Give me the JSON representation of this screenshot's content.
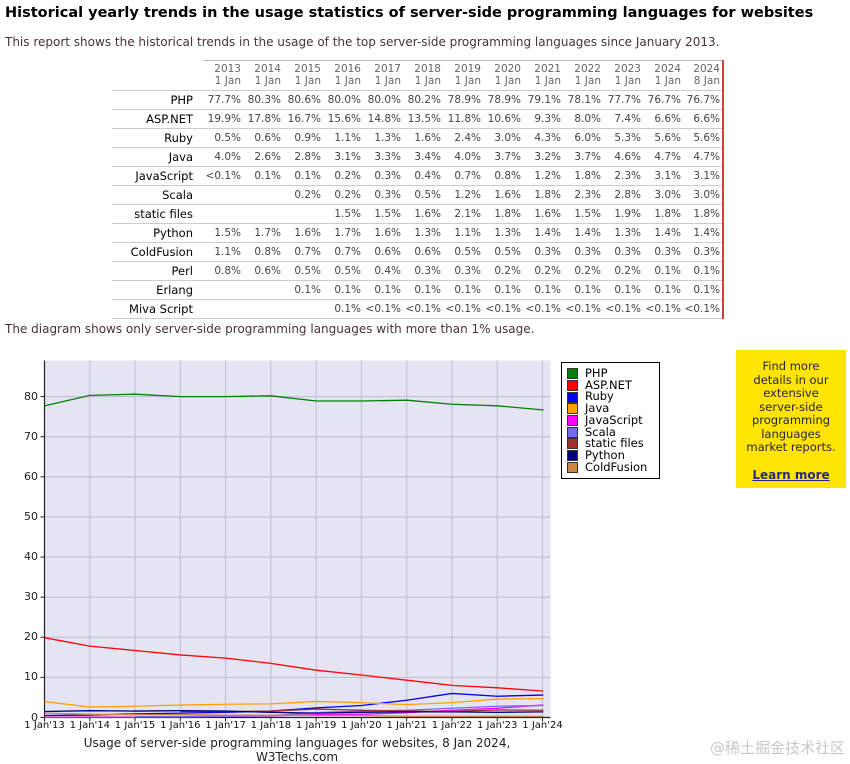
{
  "page": {
    "title": "Historical yearly trends in the usage statistics of server-side programming languages for websites",
    "subtitle": "This report shows the historical trends in the usage of the top server-side programming languages since January 2013.",
    "note": "The diagram shows only server-side programming languages with more than 1% usage.",
    "watermark": "@稀土掘金技术社区"
  },
  "table": {
    "col_headers": [
      {
        "year": "2013",
        "day": "1 Jan"
      },
      {
        "year": "2014",
        "day": "1 Jan"
      },
      {
        "year": "2015",
        "day": "1 Jan"
      },
      {
        "year": "2016",
        "day": "1 Jan"
      },
      {
        "year": "2017",
        "day": "1 Jan"
      },
      {
        "year": "2018",
        "day": "1 Jan"
      },
      {
        "year": "2019",
        "day": "1 Jan"
      },
      {
        "year": "2020",
        "day": "1 Jan"
      },
      {
        "year": "2021",
        "day": "1 Jan"
      },
      {
        "year": "2022",
        "day": "1 Jan"
      },
      {
        "year": "2023",
        "day": "1 Jan"
      },
      {
        "year": "2024",
        "day": "1 Jan"
      },
      {
        "year": "2024",
        "day": "8 Jan"
      }
    ],
    "rows": [
      {
        "label": "PHP",
        "values": [
          "77.7%",
          "80.3%",
          "80.6%",
          "80.0%",
          "80.0%",
          "80.2%",
          "78.9%",
          "78.9%",
          "79.1%",
          "78.1%",
          "77.7%",
          "76.7%",
          "76.7%"
        ]
      },
      {
        "label": "ASP.NET",
        "values": [
          "19.9%",
          "17.8%",
          "16.7%",
          "15.6%",
          "14.8%",
          "13.5%",
          "11.8%",
          "10.6%",
          "9.3%",
          "8.0%",
          "7.4%",
          "6.6%",
          "6.6%"
        ]
      },
      {
        "label": "Ruby",
        "values": [
          "0.5%",
          "0.6%",
          "0.9%",
          "1.1%",
          "1.3%",
          "1.6%",
          "2.4%",
          "3.0%",
          "4.3%",
          "6.0%",
          "5.3%",
          "5.6%",
          "5.6%"
        ]
      },
      {
        "label": "Java",
        "values": [
          "4.0%",
          "2.6%",
          "2.8%",
          "3.1%",
          "3.3%",
          "3.4%",
          "4.0%",
          "3.7%",
          "3.2%",
          "3.7%",
          "4.6%",
          "4.7%",
          "4.7%"
        ]
      },
      {
        "label": "JavaScript",
        "values": [
          "<0.1%",
          "0.1%",
          "0.1%",
          "0.2%",
          "0.3%",
          "0.4%",
          "0.7%",
          "0.8%",
          "1.2%",
          "1.8%",
          "2.3%",
          "3.1%",
          "3.1%"
        ]
      },
      {
        "label": "Scala",
        "values": [
          "",
          "",
          "0.2%",
          "0.2%",
          "0.3%",
          "0.5%",
          "1.2%",
          "1.6%",
          "1.8%",
          "2.3%",
          "2.8%",
          "3.0%",
          "3.0%"
        ]
      },
      {
        "label": "static files",
        "values": [
          "",
          "",
          "",
          "1.5%",
          "1.5%",
          "1.6%",
          "2.1%",
          "1.8%",
          "1.6%",
          "1.5%",
          "1.9%",
          "1.8%",
          "1.8%"
        ]
      },
      {
        "label": "Python",
        "values": [
          "1.5%",
          "1.7%",
          "1.6%",
          "1.7%",
          "1.6%",
          "1.3%",
          "1.1%",
          "1.3%",
          "1.4%",
          "1.4%",
          "1.3%",
          "1.4%",
          "1.4%"
        ]
      },
      {
        "label": "ColdFusion",
        "values": [
          "1.1%",
          "0.8%",
          "0.7%",
          "0.7%",
          "0.6%",
          "0.6%",
          "0.5%",
          "0.5%",
          "0.3%",
          "0.3%",
          "0.3%",
          "0.3%",
          "0.3%"
        ]
      },
      {
        "label": "Perl",
        "values": [
          "0.8%",
          "0.6%",
          "0.5%",
          "0.5%",
          "0.4%",
          "0.3%",
          "0.3%",
          "0.2%",
          "0.2%",
          "0.2%",
          "0.2%",
          "0.1%",
          "0.1%"
        ]
      },
      {
        "label": "Erlang",
        "values": [
          "",
          "",
          "0.1%",
          "0.1%",
          "0.1%",
          "0.1%",
          "0.1%",
          "0.1%",
          "0.1%",
          "0.1%",
          "0.1%",
          "0.1%",
          "0.1%"
        ]
      },
      {
        "label": "Miva Script",
        "values": [
          "",
          "",
          "",
          "0.1%",
          "<0.1%",
          "<0.1%",
          "<0.1%",
          "<0.1%",
          "<0.1%",
          "<0.1%",
          "<0.1%",
          "<0.1%",
          "<0.1%"
        ]
      }
    ]
  },
  "chart": {
    "caption": "Usage of server-side programming languages for websites, 8 Jan 2024, W3Techs.com",
    "plot_bg": "#e4e4f2",
    "grid_color": "#bcbcd2",
    "y_ticks": [
      0,
      10,
      20,
      30,
      40,
      50,
      60,
      70,
      80
    ]
  },
  "chart_data": {
    "type": "line",
    "x_labels": [
      "1 Jan'13",
      "1 Jan'14",
      "1 Jan'15",
      "1 Jan'16",
      "1 Jan'17",
      "1 Jan'18",
      "1 Jan'19",
      "1 Jan'20",
      "1 Jan'21",
      "1 Jan'22",
      "1 Jan'23",
      "1 Jan'24"
    ],
    "x_points": [
      "2013-01-01",
      "2014-01-01",
      "2015-01-01",
      "2016-01-01",
      "2017-01-01",
      "2018-01-01",
      "2019-01-01",
      "2020-01-01",
      "2021-01-01",
      "2022-01-01",
      "2023-01-01",
      "2024-01-01",
      "2024-01-08"
    ],
    "ylim": [
      0,
      89
    ],
    "grid": true,
    "legend_position": "right",
    "title": "Usage of server-side programming languages for websites, 8 Jan 2024, W3Techs.com",
    "series": [
      {
        "name": "PHP",
        "color": "#008000",
        "values": [
          77.7,
          80.3,
          80.6,
          80.0,
          80.0,
          80.2,
          78.9,
          78.9,
          79.1,
          78.1,
          77.7,
          76.7,
          76.7
        ]
      },
      {
        "name": "ASP.NET",
        "color": "#ff0000",
        "values": [
          19.9,
          17.8,
          16.7,
          15.6,
          14.8,
          13.5,
          11.8,
          10.6,
          9.3,
          8.0,
          7.4,
          6.6,
          6.6
        ]
      },
      {
        "name": "Ruby",
        "color": "#0000ee",
        "values": [
          0.5,
          0.6,
          0.9,
          1.1,
          1.3,
          1.6,
          2.4,
          3.0,
          4.3,
          6.0,
          5.3,
          5.6,
          5.6
        ]
      },
      {
        "name": "Java",
        "color": "#ffa200",
        "values": [
          4.0,
          2.6,
          2.8,
          3.1,
          3.3,
          3.4,
          4.0,
          3.7,
          3.2,
          3.7,
          4.6,
          4.7,
          4.7
        ]
      },
      {
        "name": "JavaScript",
        "color": "#ff00ff",
        "values": [
          0.05,
          0.1,
          0.1,
          0.2,
          0.3,
          0.4,
          0.7,
          0.8,
          1.2,
          1.8,
          2.3,
          3.1,
          3.1
        ]
      },
      {
        "name": "Scala",
        "color": "#7b68ee",
        "values": [
          null,
          null,
          0.2,
          0.2,
          0.3,
          0.5,
          1.2,
          1.6,
          1.8,
          2.3,
          2.8,
          3.0,
          3.0
        ]
      },
      {
        "name": "static files",
        "color": "#a03030",
        "values": [
          null,
          null,
          null,
          1.5,
          1.5,
          1.6,
          2.1,
          1.8,
          1.6,
          1.5,
          1.9,
          1.8,
          1.8
        ]
      },
      {
        "name": "Python",
        "color": "#000080",
        "values": [
          1.5,
          1.7,
          1.6,
          1.7,
          1.6,
          1.3,
          1.1,
          1.3,
          1.4,
          1.4,
          1.3,
          1.4,
          1.4
        ]
      },
      {
        "name": "ColdFusion",
        "color": "#cd853f",
        "values": [
          1.1,
          0.8,
          0.7,
          0.7,
          0.6,
          0.6,
          0.5,
          0.5,
          0.3,
          0.3,
          0.3,
          0.3,
          0.3
        ]
      }
    ]
  },
  "promo": {
    "text": "Find more details in our extensive server-side programming languages market reports.",
    "link_label": "Learn more",
    "bg_color": "#ffe400"
  }
}
